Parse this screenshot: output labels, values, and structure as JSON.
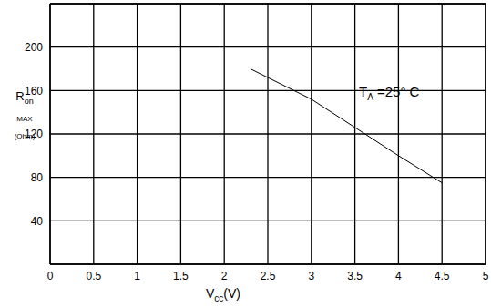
{
  "chart_data": {
    "type": "line",
    "x": [
      2.3,
      2.8,
      3,
      3.5,
      4,
      4.5
    ],
    "values": [
      180,
      160,
      152,
      126,
      100,
      75
    ],
    "color": "#000000",
    "xlim": [
      0,
      5
    ],
    "xticks": [
      0,
      0.5,
      1,
      1.5,
      2,
      2.5,
      3,
      3.5,
      4,
      4.5,
      5
    ],
    "ylim": [
      0,
      240
    ],
    "yticks": [
      40,
      80,
      120,
      160,
      200
    ],
    "grid": true,
    "x_label": {
      "main": "V",
      "sub": "cc",
      "after": "(V)"
    },
    "y_label": {
      "main": "R",
      "sub": "on",
      "line2": "MAX",
      "line3": "(Ohm)"
    },
    "annotation": {
      "main": "T",
      "sub": "A",
      "after": " =25° C"
    }
  }
}
